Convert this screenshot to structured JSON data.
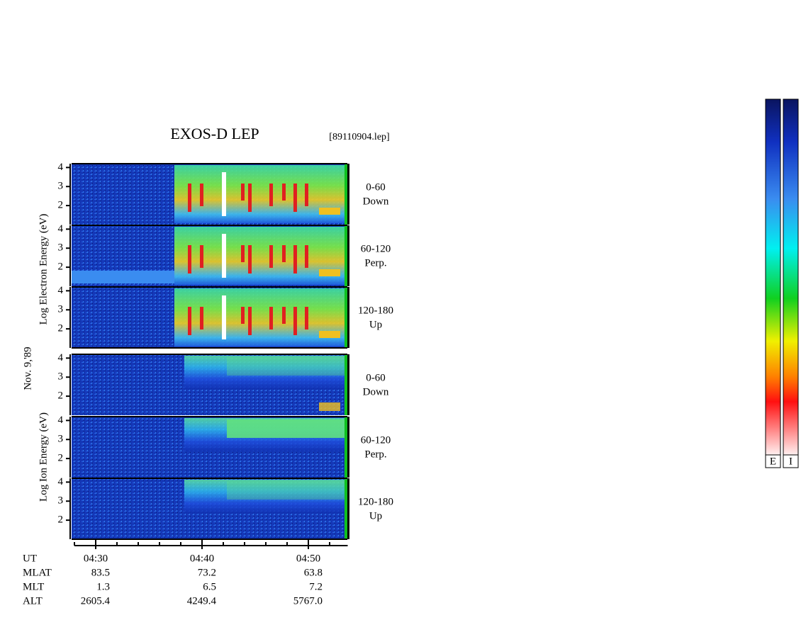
{
  "chart_data": {
    "type": "spectrogram",
    "title": "EXOS-D LEP",
    "file": "[89110904.lep]",
    "date": "Nov. 9,'89",
    "groups": [
      {
        "label": "Log Electron Energy (eV)",
        "panels": [
          {
            "angle": "0-60",
            "direction": "Down"
          },
          {
            "angle": "60-120",
            "direction": "Perp."
          },
          {
            "angle": "120-180",
            "direction": "Up"
          }
        ]
      },
      {
        "label": "Log Ion Energy (eV)",
        "panels": [
          {
            "angle": "0-60",
            "direction": "Down"
          },
          {
            "angle": "60-120",
            "direction": "Perp."
          },
          {
            "angle": "120-180",
            "direction": "Up"
          }
        ]
      }
    ],
    "ylim": [
      1,
      4.2
    ],
    "yticks": [
      2,
      3,
      4
    ],
    "xlim": [
      28,
      53.7
    ],
    "xticks": [
      {
        "value": 30,
        "label": "04:30"
      },
      {
        "value": 40,
        "label": "04:40"
      },
      {
        "value": 50,
        "label": "04:50"
      }
    ],
    "minor_xticks": [
      28,
      30,
      32,
      34,
      36,
      38,
      40,
      42,
      44,
      46,
      48,
      50,
      52
    ],
    "ephemeris": [
      {
        "label": "UT"
      },
      {
        "label": "MLAT",
        "values": [
          "83.5",
          "73.2",
          "63.8"
        ]
      },
      {
        "label": "MLT",
        "values": [
          "1.3",
          "6.5",
          "7.2"
        ]
      },
      {
        "label": "ALT",
        "values": [
          "2605.4",
          "4249.4",
          "5767.0"
        ]
      }
    ],
    "colorbars": [
      "E",
      "I"
    ]
  }
}
